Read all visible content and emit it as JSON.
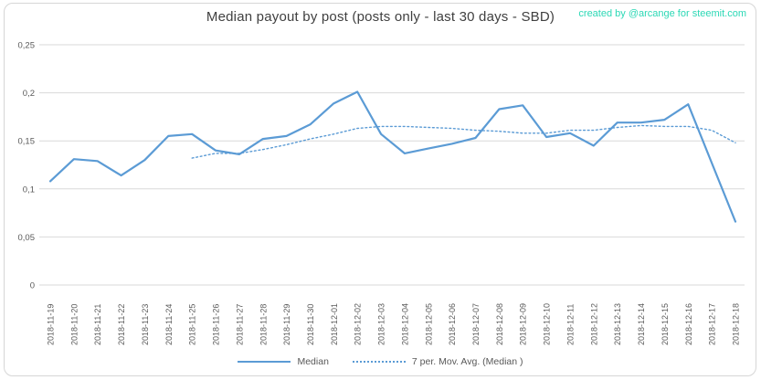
{
  "header": {
    "title": "Median payout by post (posts only - last 30 days - SBD)",
    "credit": "created by @arcange for steemit.com"
  },
  "legend": {
    "median_label": "Median",
    "mov_avg_label": "7 per. Mov. Avg. (Median )"
  },
  "colors": {
    "median_line": "#5b9bd5",
    "mov_avg_line": "#5b9bd5",
    "credit_text": "#2bd8b5",
    "title_text": "#404040",
    "axis_text": "#595959",
    "gridline": "#d9d9d9",
    "frame_border": "#d6d6d6"
  },
  "chart_data": {
    "type": "line",
    "title": "Median payout by post (posts only - last 30 days - SBD)",
    "xlabel": "",
    "ylabel": "",
    "x": [
      "2018-11-19",
      "2018-11-20",
      "2018-11-21",
      "2018-11-22",
      "2018-11-23",
      "2018-11-24",
      "2018-11-25",
      "2018-11-26",
      "2018-11-27",
      "2018-11-28",
      "2018-11-29",
      "2018-11-30",
      "2018-12-01",
      "2018-12-02",
      "2018-12-03",
      "2018-12-04",
      "2018-12-05",
      "2018-12-06",
      "2018-12-07",
      "2018-12-08",
      "2018-12-09",
      "2018-12-10",
      "2018-12-11",
      "2018-12-12",
      "2018-12-13",
      "2018-12-14",
      "2018-12-15",
      "2018-12-16",
      "2018-12-17",
      "2018-12-18"
    ],
    "series": [
      {
        "name": "Median",
        "style": "solid",
        "start_index": 0,
        "values": [
          0.108,
          0.131,
          0.129,
          0.114,
          0.13,
          0.155,
          0.157,
          0.14,
          0.136,
          0.152,
          0.155,
          0.167,
          0.189,
          0.201,
          0.157,
          0.137,
          0.142,
          0.147,
          0.153,
          0.183,
          0.187,
          0.154,
          0.158,
          0.145,
          0.169,
          0.169,
          0.172,
          0.188,
          0.127,
          0.066
        ]
      },
      {
        "name": "7 per. Mov. Avg. (Median )",
        "style": "dotted",
        "start_index": 6,
        "values": [
          0.132,
          0.137,
          0.137,
          0.141,
          0.146,
          0.152,
          0.157,
          0.163,
          0.165,
          0.165,
          0.164,
          0.163,
          0.161,
          0.16,
          0.158,
          0.158,
          0.161,
          0.161,
          0.164,
          0.166,
          0.165,
          0.165,
          0.161,
          0.148
        ]
      }
    ],
    "ylim": [
      0,
      0.25
    ],
    "ytick_values": [
      0,
      0.05,
      0.1,
      0.15,
      0.2,
      0.25
    ],
    "ytick_labels": [
      "0",
      "0,05",
      "0,1",
      "0,15",
      "0,2",
      "0,25"
    ],
    "decimal_separator": ",",
    "grid": true,
    "legend_position": "bottom"
  }
}
